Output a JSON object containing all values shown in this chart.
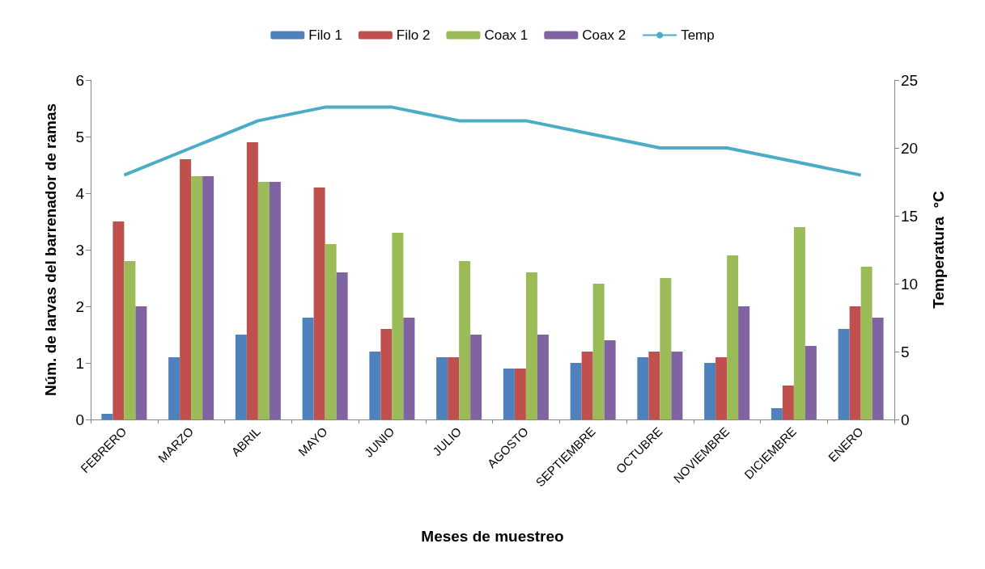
{
  "chart_data": {
    "type": "bar",
    "xlabel": "Meses de muestreo",
    "ylabel": "Núm. de larvas del barrenador de ramas",
    "y2label": "Temperatura  °C",
    "categories": [
      "FEBRERO",
      "MARZO",
      "ABRIL",
      "MAYO",
      "JUNIO",
      "JULIO",
      "AGOSTO",
      "SEPTIEMBRE",
      "OCTUBRE",
      "NOVIEMBRE",
      "DICIEMBRE",
      "ENERO"
    ],
    "series": [
      {
        "name": "Filo 1",
        "color": "#4f81bd",
        "values": [
          0.1,
          1.1,
          1.5,
          1.8,
          1.2,
          1.1,
          0.9,
          1.0,
          1.1,
          1.0,
          0.2,
          1.6
        ]
      },
      {
        "name": "Filo 2",
        "color": "#c0504d",
        "values": [
          3.5,
          4.6,
          4.9,
          4.1,
          1.6,
          1.1,
          0.9,
          1.2,
          1.2,
          1.1,
          0.6,
          2.0
        ]
      },
      {
        "name": "Coax 1",
        "color": "#9bbb59",
        "values": [
          2.8,
          4.3,
          4.2,
          3.1,
          3.3,
          2.8,
          2.6,
          2.4,
          2.5,
          2.9,
          3.4,
          2.7
        ]
      },
      {
        "name": "Coax 2",
        "color": "#8064a2",
        "values": [
          2.0,
          4.3,
          4.2,
          2.6,
          1.8,
          1.5,
          1.5,
          1.4,
          1.2,
          2.0,
          1.3,
          1.8
        ]
      },
      {
        "name": "Temp",
        "type": "line",
        "axis": "y2",
        "color": "#4bacc6",
        "marker": "none",
        "values": [
          18,
          20,
          22,
          23,
          23,
          22,
          22,
          21,
          20,
          20,
          19,
          18
        ]
      }
    ],
    "ylim": [
      0,
      6
    ],
    "yticks": [
      0,
      1,
      2,
      3,
      4,
      5,
      6
    ],
    "y2lim": [
      0,
      25
    ],
    "y2ticks": [
      0,
      5,
      10,
      15,
      20,
      25
    ],
    "grid": false,
    "legend": "top"
  }
}
